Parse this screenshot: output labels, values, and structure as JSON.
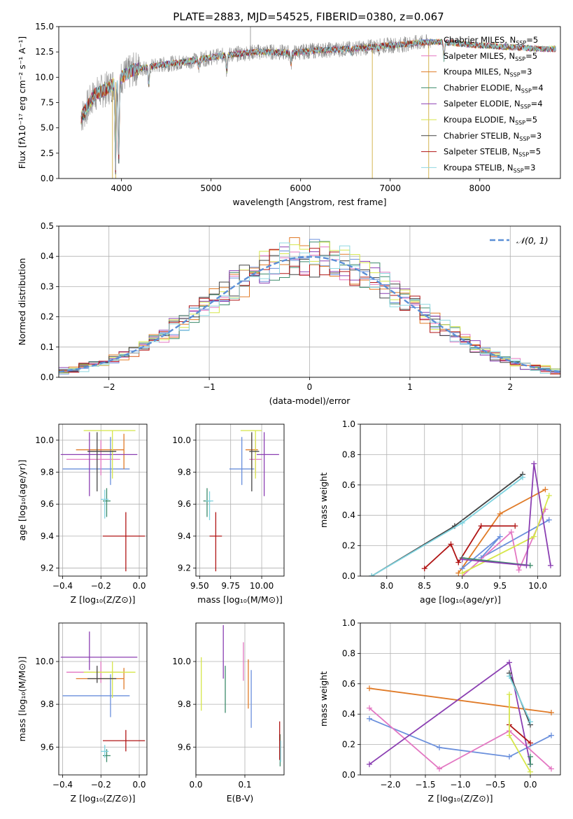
{
  "figure_title": "PLATE=2883, MJD=54525, FIBERID=0380, z=0.067",
  "palette": [
    "#1f1f1f",
    "#e377c2",
    "#e07b28",
    "#3d8b6b",
    "#8b3fb2",
    "#d6e64a",
    "#444444",
    "#b01515",
    "#7fd3df",
    "#6a8fdc",
    "#777777"
  ],
  "chart_data": [
    {
      "type": "line",
      "id": "spectrum",
      "title": "PLATE=2883, MJD=54525, FIBERID=0380, z=0.067",
      "xlabel": "wavelength [Angstrom, rest frame]",
      "ylabel": "Flux [fλ10⁻¹⁷ erg cm⁻² s⁻¹ A⁻¹]",
      "xlim": [
        3300,
        8900
      ],
      "ylim": [
        0,
        15
      ],
      "xticks": [
        4000,
        5000,
        6000,
        7000,
        8000
      ],
      "yticks": [
        0.0,
        2.5,
        5.0,
        7.5,
        10.0,
        12.5,
        15.0
      ],
      "grid": false,
      "legend": "right",
      "series": [
        {
          "name": "Chabrier MILES, N_SSP=5",
          "color": "#6a8fdc"
        },
        {
          "name": "Salpeter MILES, N_SSP=5",
          "color": "#e377c2"
        },
        {
          "name": "Kroupa MILES, N_SSP=3",
          "color": "#e07b28"
        },
        {
          "name": "Chabrier ELODIE, N_SSP=4",
          "color": "#3d8b6b"
        },
        {
          "name": "Salpeter ELODIE, N_SSP=4",
          "color": "#8b3fb2"
        },
        {
          "name": "Kroupa ELODIE, N_SSP=5",
          "color": "#d6e64a"
        },
        {
          "name": "Chabrier STELIB, N_SSP=3",
          "color": "#444444"
        },
        {
          "name": "Salpeter STELIB, N_SSP=5",
          "color": "#b01515"
        },
        {
          "name": "Kroupa STELIB, N_SSP=3",
          "color": "#8fd7e0"
        }
      ],
      "continuum": {
        "x": [
          3550,
          3700,
          3850,
          4000,
          4150,
          4300,
          4500,
          4700,
          4900,
          5100,
          5300,
          5500,
          5700,
          5900,
          6100,
          6300,
          6500,
          6700,
          6900,
          7100,
          7300,
          7500,
          7700,
          7900,
          8100,
          8300,
          8500,
          8700
        ],
        "y": [
          6.0,
          8.3,
          8.9,
          10.0,
          10.8,
          11.0,
          11.3,
          11.5,
          11.8,
          12.1,
          12.3,
          12.5,
          12.5,
          12.4,
          12.6,
          12.7,
          12.8,
          12.9,
          13.1,
          13.2,
          13.4,
          13.5,
          13.4,
          13.2,
          13.1,
          13.0,
          12.9,
          12.8
        ]
      },
      "data_span": [
        3550,
        7450
      ],
      "model_span": [
        3550,
        8850
      ],
      "absorption": [
        {
          "x": 3934,
          "y": 1.0
        },
        {
          "x": 3969,
          "y": 2.0
        },
        {
          "x": 4305,
          "y": 9.2
        },
        {
          "x": 4861,
          "y": 11.0
        },
        {
          "x": 5175,
          "y": 10.6
        },
        {
          "x": 5893,
          "y": 11.3
        },
        {
          "x": 6563,
          "y": 12.4
        },
        {
          "x": 6870,
          "y": 12.8
        },
        {
          "x": 7600,
          "y": 11.8
        }
      ],
      "spikes": [
        {
          "x": 3900,
          "y": 0
        },
        {
          "x": 3935,
          "y": 0
        },
        {
          "x": 6800,
          "y": 0
        },
        {
          "x": 7430,
          "y": 0
        },
        {
          "x": 5440,
          "y": 15
        }
      ]
    },
    {
      "type": "bar",
      "id": "residuals",
      "xlabel": "(data-model)/error",
      "ylabel": "Normed distribution",
      "xlim": [
        -2.5,
        2.5
      ],
      "ylim": [
        0,
        0.5
      ],
      "xticks": [
        -2,
        -1,
        0,
        1,
        2
      ],
      "yticks": [
        0.0,
        0.1,
        0.2,
        0.3,
        0.4,
        0.5
      ],
      "grid": true,
      "legend": "top-right",
      "bins": {
        "start": -2.5,
        "width": 0.1,
        "count": 50
      },
      "reference": {
        "name": "𝒩(0, 1)",
        "mu": 0,
        "sigma": 1,
        "color": "#5b8fd6"
      },
      "series": [
        {
          "name": "Chabrier MILES",
          "color": "#6a8fdc"
        },
        {
          "name": "Salpeter MILES",
          "color": "#e377c2"
        },
        {
          "name": "Kroupa MILES",
          "color": "#e07b28"
        },
        {
          "name": "Chabrier ELODIE",
          "color": "#3d8b6b"
        },
        {
          "name": "Salpeter ELODIE",
          "color": "#8b3fb2"
        },
        {
          "name": "Kroupa ELODIE",
          "color": "#d6e64a"
        },
        {
          "name": "Chabrier STELIB",
          "color": "#444444"
        },
        {
          "name": "Salpeter STELIB",
          "color": "#b01515"
        },
        {
          "name": "Kroupa STELIB",
          "color": "#8fd7e0"
        }
      ]
    },
    {
      "type": "scatter",
      "id": "age-vs-Z",
      "xlabel": "Z [log₁₀(Z/Z⊙)]",
      "ylabel": "age  [log₁₀(age/yr)]",
      "xlim": [
        -0.42,
        0.04
      ],
      "ylim": [
        9.15,
        10.1
      ],
      "xticks": [
        -0.4,
        -0.2,
        0.0
      ],
      "yticks": [
        9.2,
        9.4,
        9.6,
        9.8,
        10.0
      ],
      "grid": true,
      "points": [
        {
          "x": -0.15,
          "y": 9.82,
          "xerr": [
            0.25,
            0.1
          ],
          "yerr": [
            0.1,
            0.2
          ],
          "color": "#6a8fdc"
        },
        {
          "x": -0.2,
          "y": 9.88,
          "xerr": [
            0.18,
            0.1
          ],
          "yerr": [
            0.1,
            0.12
          ],
          "color": "#e377c2"
        },
        {
          "x": -0.08,
          "y": 9.94,
          "xerr": [
            0.25,
            0.0
          ],
          "yerr": [
            0.12,
            0.1
          ],
          "color": "#e07b28"
        },
        {
          "x": -0.17,
          "y": 9.62,
          "xerr": [
            0.02,
            0.02
          ],
          "yerr": [
            0.1,
            0.08
          ],
          "color": "#3d8b6b"
        },
        {
          "x": -0.26,
          "y": 9.91,
          "xerr": [
            0.15,
            0.25
          ],
          "yerr": [
            0.26,
            0.14
          ],
          "color": "#8b3fb2"
        },
        {
          "x": -0.14,
          "y": 10.06,
          "xerr": [
            0.15,
            0.12
          ],
          "yerr": [
            0.3,
            0.0
          ],
          "color": "#d6e64a"
        },
        {
          "x": -0.22,
          "y": 9.93,
          "xerr": [
            0.05,
            0.1
          ],
          "yerr": [
            0.25,
            0.12
          ],
          "color": "#444444"
        },
        {
          "x": -0.07,
          "y": 9.4,
          "xerr": [
            0.12,
            0.1
          ],
          "yerr": [
            0.22,
            0.15
          ],
          "color": "#b01515"
        },
        {
          "x": -0.18,
          "y": 9.63,
          "xerr": [
            0.02,
            0.02
          ],
          "yerr": [
            0.12,
            0.06
          ],
          "color": "#7fd3df"
        }
      ]
    },
    {
      "type": "scatter",
      "id": "age-vs-mass",
      "xlabel": "mass [log₁₀(M/M⊙)]",
      "ylabel": "",
      "xlim": [
        9.47,
        10.18
      ],
      "ylim": [
        9.15,
        10.1
      ],
      "xticks": [
        9.5,
        9.75,
        10.0
      ],
      "yticks": [
        9.2,
        9.4,
        9.6,
        9.8,
        10.0
      ],
      "grid": true,
      "points": [
        {
          "x": 9.84,
          "y": 9.82,
          "xerr": [
            0.1,
            0.1
          ],
          "yerr": [
            0.1,
            0.2
          ],
          "color": "#6a8fdc"
        },
        {
          "x": 9.95,
          "y": 9.88,
          "xerr": [
            0.05,
            0.05
          ],
          "yerr": [
            0.1,
            0.12
          ],
          "color": "#e377c2"
        },
        {
          "x": 9.92,
          "y": 9.94,
          "xerr": [
            0.05,
            0.05
          ],
          "yerr": [
            0.12,
            0.1
          ],
          "color": "#e07b28"
        },
        {
          "x": 9.56,
          "y": 9.62,
          "xerr": [
            0.03,
            0.03
          ],
          "yerr": [
            0.1,
            0.08
          ],
          "color": "#3d8b6b"
        },
        {
          "x": 10.02,
          "y": 9.91,
          "xerr": [
            0.06,
            0.12
          ],
          "yerr": [
            0.26,
            0.14
          ],
          "color": "#8b3fb2"
        },
        {
          "x": 9.95,
          "y": 10.06,
          "xerr": [
            0.12,
            0.05
          ],
          "yerr": [
            0.3,
            0.0
          ],
          "color": "#d6e64a"
        },
        {
          "x": 9.92,
          "y": 9.93,
          "xerr": [
            0.02,
            0.06
          ],
          "yerr": [
            0.25,
            0.12
          ],
          "color": "#444444"
        },
        {
          "x": 9.63,
          "y": 9.4,
          "xerr": [
            0.05,
            0.05
          ],
          "yerr": [
            0.22,
            0.15
          ],
          "color": "#b01515"
        },
        {
          "x": 9.58,
          "y": 9.62,
          "xerr": [
            0.03,
            0.03
          ],
          "yerr": [
            0.12,
            0.06
          ],
          "color": "#7fd3df"
        }
      ]
    },
    {
      "type": "line",
      "id": "weight-vs-age",
      "xlabel": "age  [log₁₀(age/yr)]",
      "ylabel": "mass weight",
      "xlim": [
        7.65,
        10.3
      ],
      "ylim": [
        0,
        1
      ],
      "xticks": [
        8.0,
        8.5,
        9.0,
        9.5,
        10.0
      ],
      "yticks": [
        0.0,
        0.2,
        0.4,
        0.6,
        0.8,
        1.0
      ],
      "grid": true,
      "series": [
        {
          "color": "#444444",
          "x": [
            7.8,
            8.9,
            9.8
          ],
          "y": [
            0.0,
            0.33,
            0.67
          ]
        },
        {
          "color": "#7fd3df",
          "x": [
            7.8,
            9.0,
            9.8
          ],
          "y": [
            0.0,
            0.35,
            0.65
          ]
        },
        {
          "color": "#e07b28",
          "x": [
            8.95,
            9.5,
            10.1
          ],
          "y": [
            0.02,
            0.41,
            0.57
          ]
        },
        {
          "color": "#6a8fdc",
          "x": [
            9.0,
            9.5,
            9.25,
            10.15
          ],
          "y": [
            0.05,
            0.26,
            0.12,
            0.37
          ]
        },
        {
          "color": "#b01515",
          "x": [
            8.5,
            8.85,
            8.95,
            9.25,
            9.7
          ],
          "y": [
            0.05,
            0.21,
            0.09,
            0.33,
            0.33
          ]
        },
        {
          "color": "#e377c2",
          "x": [
            9.0,
            9.65,
            9.75,
            10.1
          ],
          "y": [
            0.0,
            0.29,
            0.04,
            0.44
          ]
        },
        {
          "color": "#d6e64a",
          "x": [
            9.0,
            9.95,
            10.15
          ],
          "y": [
            0.02,
            0.26,
            0.53
          ]
        },
        {
          "color": "#3d8b6b",
          "x": [
            9.0,
            9.9
          ],
          "y": [
            0.12,
            0.07
          ]
        },
        {
          "color": "#8b3fb2",
          "x": [
            9.0,
            9.85,
            9.95,
            10.17
          ],
          "y": [
            0.11,
            0.07,
            0.74,
            0.07
          ]
        }
      ]
    },
    {
      "type": "scatter",
      "id": "mass-vs-Z",
      "xlabel": "Z [log₁₀(Z/Z⊙)]",
      "ylabel": "mass [log₁₀(M/M⊙)]",
      "xlim": [
        -0.42,
        0.04
      ],
      "ylim": [
        9.47,
        10.18
      ],
      "xticks": [
        -0.4,
        -0.2,
        0.0
      ],
      "yticks": [
        9.6,
        9.8,
        10.0
      ],
      "grid": true,
      "points": [
        {
          "x": -0.15,
          "y": 9.84,
          "xerr": [
            0.25,
            0.1
          ],
          "yerr": [
            0.1,
            0.1
          ],
          "color": "#6a8fdc"
        },
        {
          "x": -0.2,
          "y": 9.95,
          "xerr": [
            0.18,
            0.1
          ],
          "yerr": [
            0.05,
            0.05
          ],
          "color": "#e377c2"
        },
        {
          "x": -0.08,
          "y": 9.92,
          "xerr": [
            0.25,
            0.0
          ],
          "yerr": [
            0.05,
            0.05
          ],
          "color": "#e07b28"
        },
        {
          "x": -0.17,
          "y": 9.56,
          "xerr": [
            0.02,
            0.02
          ],
          "yerr": [
            0.03,
            0.03
          ],
          "color": "#3d8b6b"
        },
        {
          "x": -0.26,
          "y": 10.02,
          "xerr": [
            0.15,
            0.25
          ],
          "yerr": [
            0.06,
            0.12
          ],
          "color": "#8b3fb2"
        },
        {
          "x": -0.14,
          "y": 9.95,
          "xerr": [
            0.15,
            0.12
          ],
          "yerr": [
            0.12,
            0.05
          ],
          "color": "#d6e64a"
        },
        {
          "x": -0.22,
          "y": 9.92,
          "xerr": [
            0.05,
            0.1
          ],
          "yerr": [
            0.02,
            0.06
          ],
          "color": "#444444"
        },
        {
          "x": -0.07,
          "y": 9.63,
          "xerr": [
            0.12,
            0.1
          ],
          "yerr": [
            0.05,
            0.05
          ],
          "color": "#b01515"
        },
        {
          "x": -0.18,
          "y": 9.58,
          "xerr": [
            0.02,
            0.02
          ],
          "yerr": [
            0.03,
            0.03
          ],
          "color": "#7fd3df"
        }
      ]
    },
    {
      "type": "scatter",
      "id": "mass-vs-EBV",
      "xlabel": "E(B-V)",
      "ylabel": "",
      "xlim": [
        0.0,
        0.18
      ],
      "ylim": [
        9.47,
        10.18
      ],
      "xticks": [
        0.0,
        0.1
      ],
      "yticks": [
        9.6,
        9.8,
        10.0
      ],
      "grid": true,
      "points": [
        {
          "x": 0.113,
          "y": 9.84,
          "yerr": [
            0.15,
            0.12
          ],
          "color": "#6a8fdc"
        },
        {
          "x": 0.097,
          "y": 9.98,
          "yerr": [
            0.07,
            0.11
          ],
          "color": "#e377c2"
        },
        {
          "x": 0.107,
          "y": 9.93,
          "yerr": [
            0.15,
            0.08
          ],
          "color": "#e07b28"
        },
        {
          "x": 0.06,
          "y": 9.92,
          "yerr": [
            0.16,
            0.06
          ],
          "color": "#3d8b6b"
        },
        {
          "x": 0.056,
          "y": 10.04,
          "yerr": [
            0.12,
            0.13
          ],
          "color": "#8b3fb2"
        },
        {
          "x": 0.011,
          "y": 9.9,
          "yerr": [
            0.13,
            0.12
          ],
          "color": "#d6e64a"
        },
        {
          "x": 0.172,
          "y": 9.6,
          "yerr": [
            0.09,
            0.06
          ],
          "color": "#3d8b6b"
        },
        {
          "x": 0.171,
          "y": 9.62,
          "yerr": [
            0.08,
            0.1
          ],
          "color": "#b01515"
        },
        {
          "x": 0.173,
          "y": 9.58,
          "yerr": [
            0.05,
            0.05
          ],
          "color": "#7fd3df"
        }
      ]
    },
    {
      "type": "line",
      "id": "weight-vs-Z",
      "xlabel": "Z [log₁₀(Z/Z⊙)]",
      "ylabel": "mass weight",
      "xlim": [
        -2.43,
        0.43
      ],
      "ylim": [
        0,
        1
      ],
      "xticks": [
        -2.0,
        -1.5,
        -1.0,
        -0.5,
        0.0
      ],
      "yticks": [
        0.0,
        0.2,
        0.4,
        0.6,
        0.8,
        1.0
      ],
      "grid": true,
      "series": [
        {
          "color": "#e07b28",
          "x": [
            -2.3,
            0.3
          ],
          "y": [
            0.57,
            0.41
          ]
        },
        {
          "color": "#6a8fdc",
          "x": [
            -2.3,
            -1.3,
            -0.3,
            0.3
          ],
          "y": [
            0.37,
            0.18,
            0.12,
            0.26
          ]
        },
        {
          "color": "#e377c2",
          "x": [
            -2.3,
            -1.3,
            -0.3,
            0.3
          ],
          "y": [
            0.44,
            0.04,
            0.29,
            0.04
          ]
        },
        {
          "color": "#8b3fb2",
          "x": [
            -2.3,
            -0.3,
            0.0
          ],
          "y": [
            0.07,
            0.74,
            0.07
          ]
        },
        {
          "color": "#444444",
          "x": [
            -0.3,
            0.0
          ],
          "y": [
            0.67,
            0.33
          ]
        },
        {
          "color": "#7fd3df",
          "x": [
            -0.3,
            0.0
          ],
          "y": [
            0.65,
            0.35
          ]
        },
        {
          "color": "#b01515",
          "x": [
            -0.3,
            0.0
          ],
          "y": [
            0.33,
            0.21
          ]
        },
        {
          "color": "#d6e64a",
          "x": [
            -0.3,
            -0.3,
            0.0
          ],
          "y": [
            0.53,
            0.26,
            0.02
          ]
        },
        {
          "color": "#3d8b6b",
          "x": [
            0.0,
            0.0
          ],
          "y": [
            0.12,
            0.07
          ]
        }
      ]
    }
  ]
}
